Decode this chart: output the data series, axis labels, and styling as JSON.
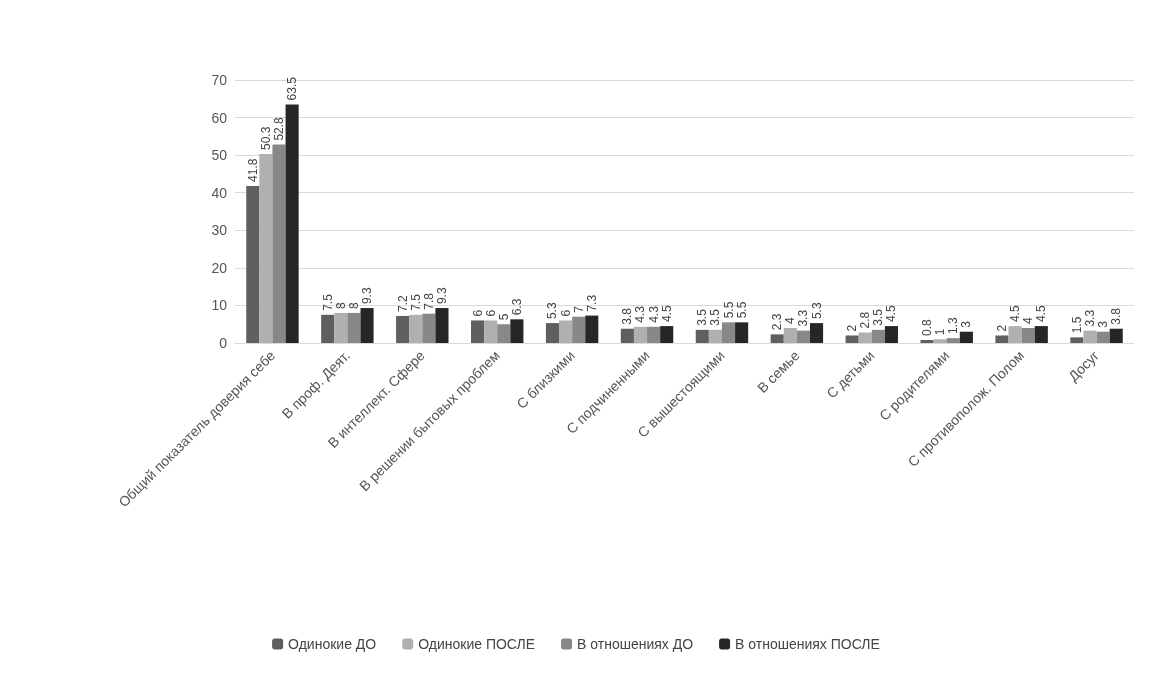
{
  "chart_data": {
    "type": "bar",
    "categories": [
      "Общий показатель доверия себе",
      "В проф. Деят.",
      "В интеллект. Сфере",
      "В решении бытовых проблем",
      "С близкими",
      "С подчиненными",
      "С вышестоящими",
      "В семье",
      "С детьми",
      "С родителями",
      "С противополож. Полом",
      "Досуг"
    ],
    "series": [
      {
        "name": "Одинокие ДО",
        "color": "#5f5f5f",
        "values": [
          41.8,
          7.5,
          7.2,
          6,
          5.3,
          3.8,
          3.5,
          2.3,
          2,
          0.8,
          2,
          1.5
        ]
      },
      {
        "name": "Одинокие ПОСЛЕ",
        "color": "#b0b0b0",
        "values": [
          50.3,
          8,
          7.5,
          6,
          6,
          4.3,
          3.5,
          4,
          2.8,
          1,
          4.5,
          3.3
        ]
      },
      {
        "name": "В отношениях ДО",
        "color": "#888888",
        "values": [
          52.8,
          8,
          7.8,
          5,
          7,
          4.3,
          5.5,
          3.3,
          3.5,
          1.3,
          4,
          3
        ]
      },
      {
        "name": "В отношениях ПОСЛЕ",
        "color": "#262626",
        "values": [
          63.5,
          9.3,
          9.3,
          6.3,
          7.3,
          4.5,
          5.5,
          5.3,
          4.5,
          3,
          4.5,
          3.8
        ]
      }
    ],
    "ylim": [
      0,
      70
    ],
    "yticks": [
      0,
      10,
      20,
      30,
      40,
      50,
      60,
      70
    ],
    "grid": "y",
    "legend": "bottom",
    "data_labels": true
  }
}
